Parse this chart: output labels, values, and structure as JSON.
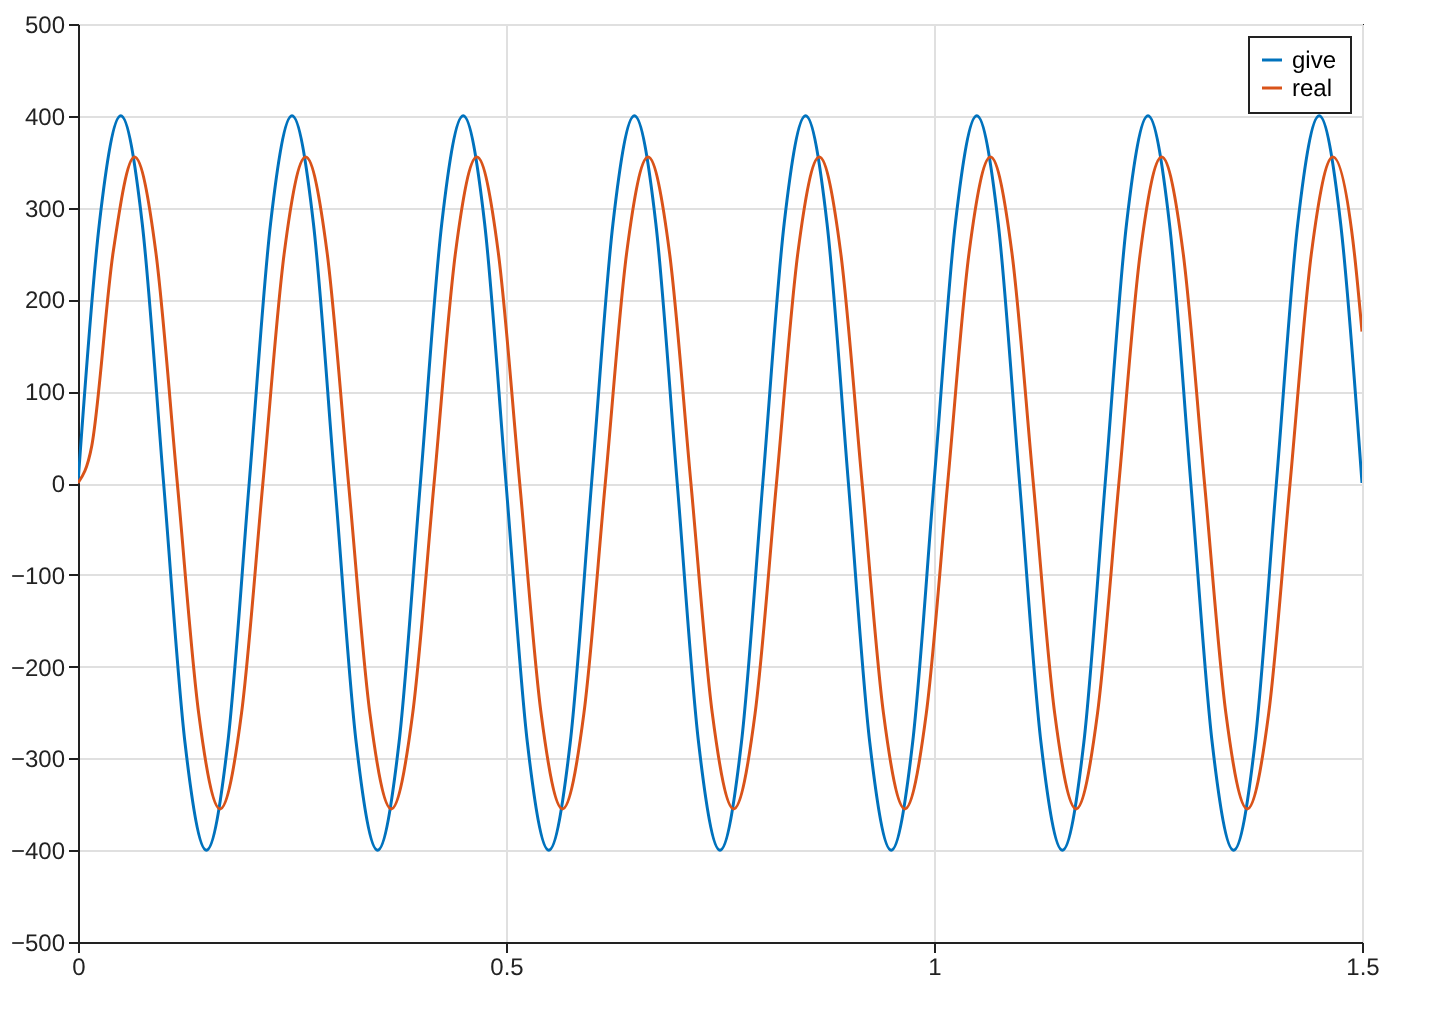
{
  "chart_data": {
    "type": "line",
    "xlim": [
      0,
      1.5
    ],
    "ylim": [
      -500,
      500
    ],
    "xticks": [
      0,
      0.5,
      1,
      1.5
    ],
    "yticks": [
      -500,
      -400,
      -300,
      -200,
      -100,
      0,
      100,
      200,
      300,
      400,
      500
    ],
    "grid": true,
    "legend": "top right",
    "series": [
      {
        "name": "give",
        "color": "#0072bd",
        "x": [
          0,
          0.025,
          0.05,
          0.075,
          0.1,
          0.125,
          0.15,
          0.175,
          0.2,
          0.225,
          0.25,
          0.275,
          0.3,
          0.325,
          0.35,
          0.375,
          0.4,
          0.425,
          0.45,
          0.475,
          0.5,
          0.525,
          0.55,
          0.575,
          0.6,
          0.625,
          0.65,
          0.675,
          0.7,
          0.725,
          0.75,
          0.775,
          0.8,
          0.825,
          0.85,
          0.875,
          0.9,
          0.925,
          0.95,
          0.975,
          1,
          1.025,
          1.05,
          1.075,
          1.1,
          1.125,
          1.15,
          1.175,
          1.2,
          1.225,
          1.25,
          1.275,
          1.3,
          1.325,
          1.35,
          1.375,
          1.4,
          1.425,
          1.45,
          1.475,
          1.5
        ],
        "values": [
          0,
          283,
          400,
          283,
          0,
          -283,
          -400,
          -283,
          0,
          283,
          400,
          283,
          0,
          -283,
          -400,
          -283,
          0,
          283,
          400,
          283,
          0,
          -283,
          -400,
          -283,
          0,
          283,
          400,
          283,
          0,
          -283,
          -400,
          -283,
          0,
          283,
          400,
          283,
          0,
          -283,
          -400,
          -283,
          0,
          283,
          400,
          283,
          0,
          -283,
          -400,
          -283,
          0,
          283,
          400,
          283,
          0,
          -283,
          -400,
          -283,
          0,
          283,
          400,
          283,
          0
        ]
      },
      {
        "name": "real",
        "color": "#d95319",
        "x": [
          0,
          0.016,
          0.041,
          0.066,
          0.091,
          0.116,
          0.141,
          0.166,
          0.191,
          0.216,
          0.241,
          0.266,
          0.291,
          0.316,
          0.341,
          0.366,
          0.391,
          0.416,
          0.441,
          0.466,
          0.491,
          0.516,
          0.541,
          0.566,
          0.591,
          0.616,
          0.641,
          0.666,
          0.691,
          0.716,
          0.741,
          0.766,
          0.791,
          0.816,
          0.841,
          0.866,
          0.891,
          0.916,
          0.941,
          0.966,
          0.991,
          1.016,
          1.041,
          1.066,
          1.091,
          1.116,
          1.141,
          1.166,
          1.191,
          1.216,
          1.241,
          1.266,
          1.291,
          1.316,
          1.341,
          1.366,
          1.391,
          1.416,
          1.441,
          1.466,
          1.491,
          1.5
        ],
        "values": [
          0,
          40,
          251,
          355,
          251,
          0,
          -251,
          -355,
          -251,
          0,
          251,
          355,
          251,
          0,
          -251,
          -355,
          -251,
          0,
          251,
          355,
          251,
          0,
          -251,
          -355,
          -251,
          0,
          251,
          355,
          251,
          0,
          -251,
          -355,
          -251,
          0,
          251,
          355,
          251,
          0,
          -251,
          -355,
          -251,
          0,
          251,
          355,
          251,
          0,
          -251,
          -355,
          -251,
          0,
          251,
          355,
          251,
          0,
          -251,
          -355,
          -251,
          0,
          251,
          355,
          251,
          165
        ]
      }
    ]
  }
}
